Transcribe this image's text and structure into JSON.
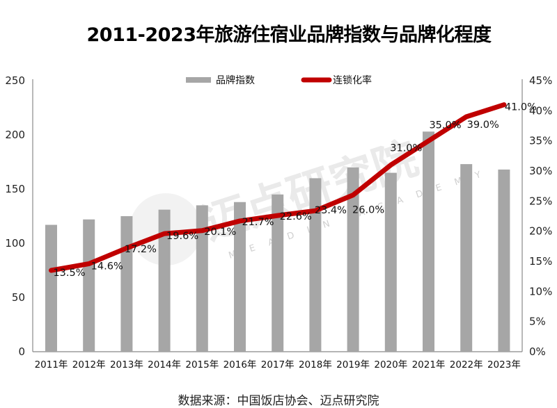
{
  "title": "2011-2023年旅游住宿业品牌指数与品牌化程度",
  "source": "数据来源：中国饭店协会、迈点研究院",
  "legend": {
    "bar_label": "品牌指数",
    "line_label": "连锁化率"
  },
  "watermark": {
    "text": "迈点研究院",
    "sub": "MEADIN ACADEMY"
  },
  "colors": {
    "bar": "#a6a6a6",
    "line": "#c00000",
    "axis": "#888888"
  },
  "chart_data": {
    "type": "bar+line",
    "title": "2011-2023年旅游住宿业品牌指数与品牌化程度",
    "categories": [
      "2011年",
      "2012年",
      "2013年",
      "2014年",
      "2015年",
      "2016年",
      "2017年",
      "2018年",
      "2019年",
      "2020年",
      "2021年",
      "2022年",
      "2023年"
    ],
    "series": [
      {
        "name": "品牌指数",
        "type": "bar",
        "axis": "left",
        "values": [
          117,
          122,
          125,
          131,
          135,
          138,
          145,
          160,
          170,
          165,
          203,
          173,
          168
        ]
      },
      {
        "name": "连锁化率",
        "type": "line",
        "axis": "right",
        "values": [
          13.5,
          14.6,
          17.2,
          19.6,
          20.1,
          21.7,
          22.6,
          23.4,
          26.0,
          31.0,
          35.0,
          39.0,
          41.0
        ],
        "labels": [
          "13.5%",
          "14.6%",
          "17.2%",
          "19.6%",
          "20.1%",
          "21.7%",
          "22.6%",
          "23.4%",
          "26.0%",
          "31.0%",
          "35.0%",
          "39.0%",
          "41.0%"
        ]
      }
    ],
    "y_left": {
      "ticks": [
        "0",
        "50",
        "100",
        "150",
        "200",
        "250"
      ],
      "range": [
        0,
        250
      ]
    },
    "y_right": {
      "ticks": [
        "0%",
        "5%",
        "10%",
        "15%",
        "20%",
        "25%",
        "30%",
        "35%",
        "40%",
        "45%"
      ],
      "range": [
        0,
        45
      ]
    },
    "legend_position": "top",
    "grid": false,
    "xlabel": "",
    "ylabel": ""
  }
}
